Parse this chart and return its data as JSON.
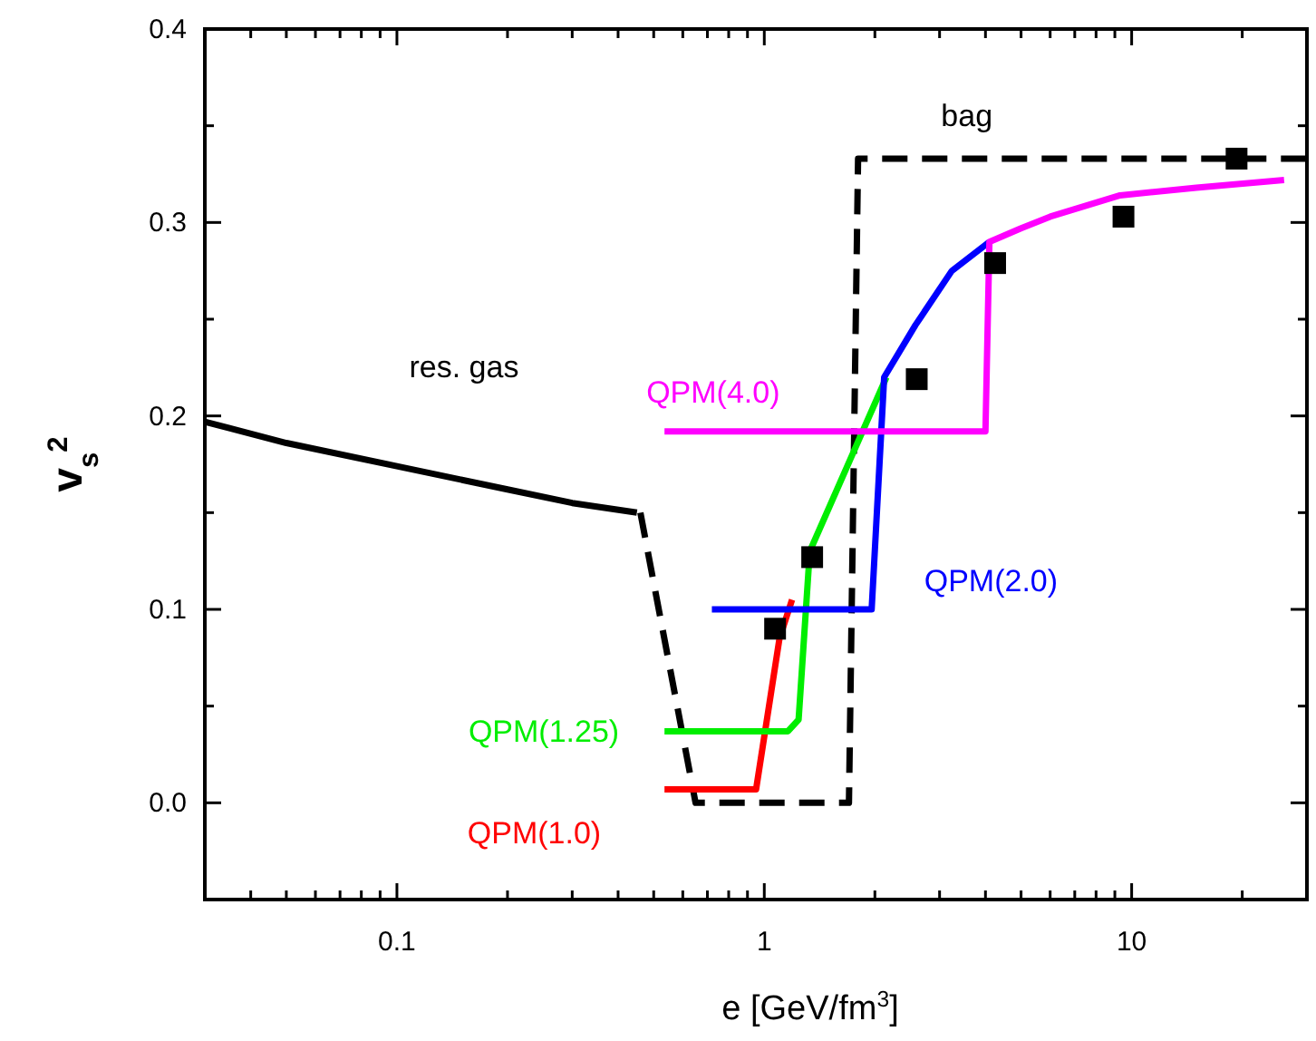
{
  "chart_data": {
    "type": "line",
    "xlabel": "e [GeV/fm$^{3}$]",
    "ylabel": "v$_{s}$$^{2}$",
    "log": "x",
    "legend": false,
    "grid": false,
    "xlim": [
      0.03,
      30
    ],
    "ylim": [
      -0.05,
      0.4
    ],
    "xticks": [
      {
        "value": 0.04,
        "label": null
      },
      {
        "value": 0.05,
        "label": null
      },
      {
        "value": 0.06,
        "label": null
      },
      {
        "value": 0.07,
        "label": null
      },
      {
        "value": 0.08,
        "label": null
      },
      {
        "value": 0.09,
        "label": null
      },
      0.1,
      {
        "value": 0.2,
        "label": null
      },
      {
        "value": 0.3,
        "label": null
      },
      {
        "value": 0.4,
        "label": null
      },
      {
        "value": 0.5,
        "label": null
      },
      {
        "value": 0.6,
        "label": null
      },
      {
        "value": 0.7,
        "label": null
      },
      {
        "value": 0.8,
        "label": null
      },
      {
        "value": 0.9,
        "label": null
      },
      1,
      {
        "value": 2,
        "label": null
      },
      {
        "value": 3,
        "label": null
      },
      {
        "value": 4,
        "label": null
      },
      {
        "value": 5,
        "label": null
      },
      {
        "value": 6,
        "label": null
      },
      {
        "value": 7,
        "label": null
      },
      {
        "value": 8,
        "label": null
      },
      {
        "value": 9,
        "label": null
      },
      10,
      {
        "value": 20,
        "label": null
      }
    ],
    "yticks": [
      {
        "value": -0.05,
        "label": null
      },
      {
        "value": 0,
        "label": "0.0"
      },
      {
        "value": 0.05,
        "label": null
      },
      0.1,
      {
        "value": 0.15,
        "label": null
      },
      0.2,
      {
        "value": 0.25,
        "label": null
      },
      0.3,
      {
        "value": 0.35,
        "label": null
      },
      0.4
    ],
    "series": [
      {
        "name": "res. gas",
        "color": "#000000",
        "line_style": "solid",
        "marker": "none",
        "x": [
          0.03,
          0.05,
          0.1,
          0.2,
          0.3,
          0.45
        ],
        "values": [
          0.197,
          0.186,
          0.174,
          0.162,
          0.155,
          0.15
        ]
      },
      {
        "name": "bag",
        "color": "#000000",
        "line_style": "dashed",
        "marker": "none",
        "x": [
          0.46,
          0.65,
          1.7,
          1.8,
          30
        ],
        "values": [
          0.15,
          0.0,
          0.0,
          0.333,
          0.333
        ]
      },
      {
        "name": "QPM(1.0)",
        "color": "#ff0000",
        "line_style": "solid",
        "marker": "none",
        "x": [
          0.535,
          0.95,
          1.1,
          1.19
        ],
        "values": [
          0.007,
          0.007,
          0.085,
          0.105
        ]
      },
      {
        "name": "QPM(1.25)",
        "color": "#00ee00",
        "line_style": "solid",
        "marker": "none",
        "x": [
          0.535,
          1.16,
          1.24,
          1.33,
          2.15
        ],
        "values": [
          0.037,
          0.037,
          0.043,
          0.13,
          0.22
        ]
      },
      {
        "name": "QPM(2.0)",
        "color": "#0000ff",
        "line_style": "solid",
        "marker": "none",
        "x": [
          0.72,
          1.96,
          2.12,
          2.58,
          3.24,
          4.1
        ],
        "values": [
          0.1,
          0.1,
          0.22,
          0.247,
          0.275,
          0.29
        ]
      },
      {
        "name": "QPM(4.0)",
        "color": "#ff00ff",
        "line_style": "solid",
        "marker": "none",
        "x": [
          0.535,
          4.0,
          4.1,
          5,
          6,
          9.3,
          15,
          26
        ],
        "values": [
          0.192,
          0.192,
          0.29,
          0.297,
          0.303,
          0.314,
          0.318,
          0.322
        ]
      },
      {
        "type": "scatter",
        "color": "#000000",
        "marker": "square",
        "x": [
          1.07,
          1.35,
          2.6,
          4.25,
          9.5,
          19.3
        ],
        "values": [
          0.09,
          0.127,
          0.219,
          0.279,
          0.303,
          0.333
        ]
      }
    ]
  }
}
